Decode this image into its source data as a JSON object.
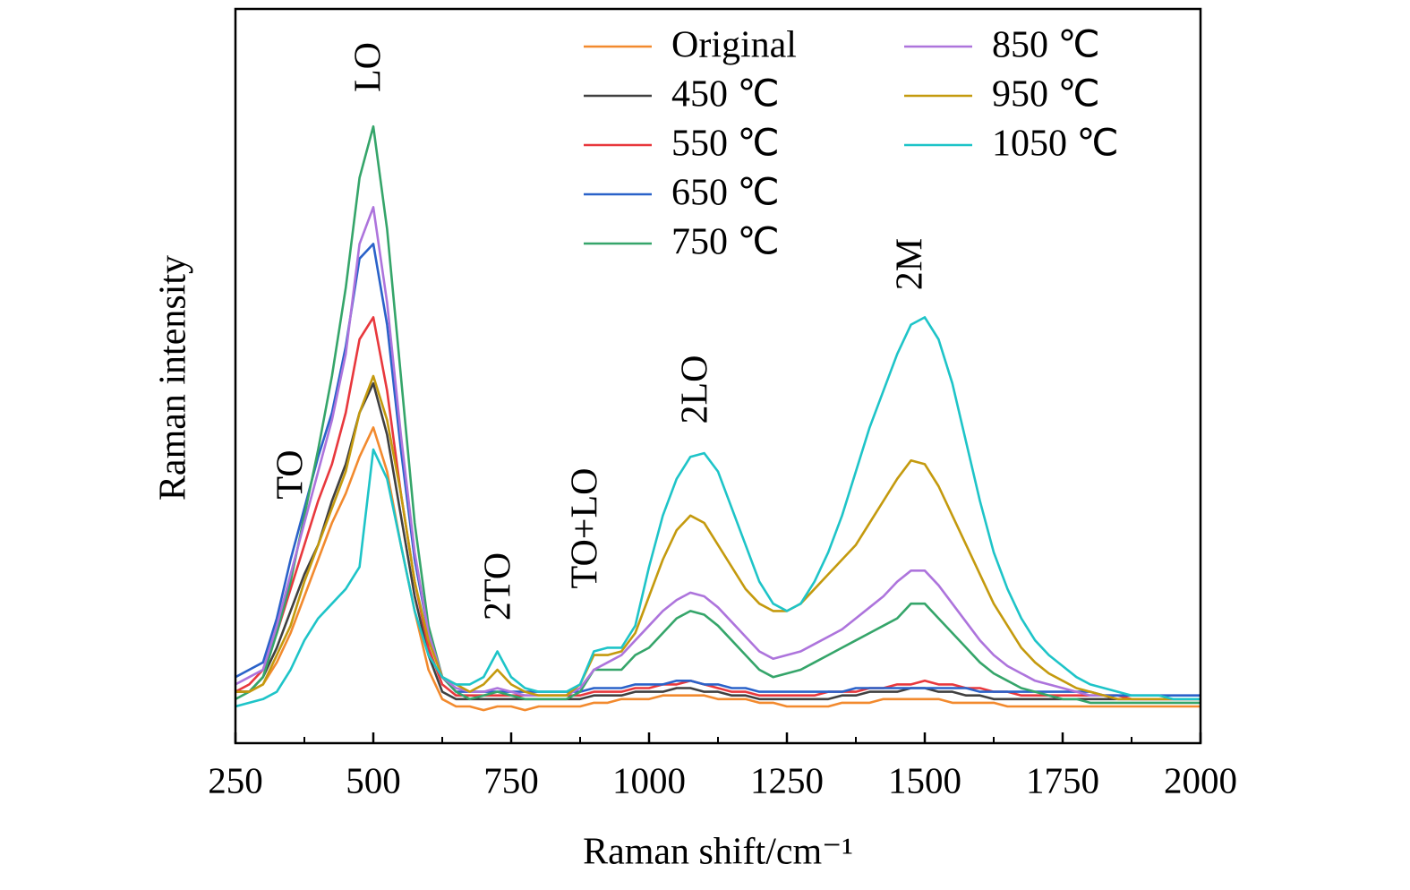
{
  "chart_data": {
    "type": "line",
    "x_label": "Raman shift/cm⁻¹",
    "y_label": "Raman intensity",
    "annotations": [
      "TO",
      "LO",
      "2TO",
      "TO+LO",
      "2LO",
      "2M"
    ],
    "x": [
      250,
      275,
      300,
      325,
      350,
      375,
      400,
      425,
      450,
      475,
      500,
      525,
      550,
      575,
      600,
      625,
      650,
      675,
      700,
      725,
      750,
      775,
      800,
      825,
      850,
      875,
      900,
      925,
      950,
      975,
      1000,
      1025,
      1050,
      1075,
      1100,
      1125,
      1150,
      1175,
      1200,
      1225,
      1250,
      1275,
      1300,
      1325,
      1350,
      1375,
      1400,
      1425,
      1450,
      1475,
      1500,
      1525,
      1550,
      1575,
      1600,
      1625,
      1650,
      1675,
      1700,
      1725,
      1750,
      1775,
      1800,
      1825,
      1850,
      1875,
      1900,
      1925,
      1950,
      1975,
      2000
    ],
    "xlim": [
      250,
      2000
    ],
    "xticks": [
      250,
      500,
      750,
      1000,
      1250,
      1500,
      1750,
      2000
    ],
    "xminorticks": [
      375,
      625,
      875,
      1125,
      1375,
      1625,
      1875
    ],
    "ylim": [
      0,
      100
    ],
    "series": [
      {
        "name": "Original",
        "color": "#f28a2e",
        "values": [
          7,
          7,
          8,
          11,
          15,
          20,
          25,
          30,
          34,
          39,
          43,
          37,
          27,
          18,
          10,
          6,
          5,
          5,
          4.5,
          5,
          5,
          4.5,
          5,
          5,
          5,
          5,
          5.5,
          5.5,
          6,
          6,
          6,
          6.5,
          6.5,
          6.5,
          6.5,
          6,
          6,
          6,
          5.5,
          5.5,
          5,
          5,
          5,
          5,
          5.5,
          5.5,
          5.5,
          6,
          6,
          6,
          6,
          6,
          5.5,
          5.5,
          5.5,
          5.5,
          5,
          5,
          5,
          5,
          5,
          5,
          5,
          5,
          5,
          5,
          5,
          5,
          5,
          5,
          5
        ]
      },
      {
        "name": "450 ℃",
        "color": "#404040",
        "values": [
          7,
          7,
          9,
          13,
          18,
          23,
          27,
          33,
          38,
          45,
          49,
          42,
          31,
          20,
          12,
          7,
          6,
          6,
          6,
          6,
          6,
          6,
          6,
          6,
          6,
          6,
          6.5,
          6.5,
          6.5,
          7,
          7,
          7,
          7.5,
          7.5,
          7,
          7,
          6.5,
          6.5,
          6,
          6,
          6,
          6,
          6,
          6,
          6.5,
          6.5,
          7,
          7,
          7,
          7.5,
          7.5,
          7,
          7,
          6.5,
          6.5,
          6,
          6,
          6,
          6,
          6,
          6,
          6,
          6,
          6,
          6,
          6,
          6,
          6,
          6,
          6,
          6
        ]
      },
      {
        "name": "550 ℃",
        "color": "#e8383d",
        "values": [
          7,
          8,
          10,
          15,
          21,
          27,
          33,
          38,
          45,
          55,
          58,
          48,
          34,
          22,
          13,
          8,
          6.5,
          6.5,
          6.5,
          6.5,
          6.5,
          6.5,
          6.5,
          6.5,
          6.5,
          6.5,
          7,
          7,
          7,
          7.5,
          7.5,
          8,
          8,
          8.5,
          8,
          7.5,
          7,
          7,
          6.5,
          6.5,
          6.5,
          6.5,
          6.5,
          7,
          7,
          7,
          7.5,
          7.5,
          8,
          8,
          8.5,
          8,
          8,
          7.5,
          7.5,
          7,
          7,
          6.5,
          6.5,
          6.5,
          6.5,
          6.5,
          6.5,
          6.5,
          6.5,
          6,
          6,
          6,
          6,
          6,
          6
        ]
      },
      {
        "name": "650 ℃",
        "color": "#2a62c9",
        "values": [
          9,
          10,
          11,
          17,
          25,
          32,
          39,
          45,
          54,
          66,
          68,
          57,
          40,
          25,
          15,
          9,
          7,
          7,
          7,
          7,
          7,
          7,
          7,
          7,
          7,
          7,
          7.5,
          7.5,
          7.5,
          8,
          8,
          8,
          8.5,
          8.5,
          8,
          8,
          7.5,
          7.5,
          7,
          7,
          7,
          7,
          7,
          7,
          7,
          7.5,
          7.5,
          7.5,
          7.5,
          7.5,
          7.5,
          7.5,
          7.5,
          7.5,
          7,
          7,
          7,
          7,
          7,
          7,
          7,
          7,
          7,
          6.5,
          6.5,
          6.5,
          6.5,
          6.5,
          6.5,
          6.5,
          6.5
        ]
      },
      {
        "name": "750 ℃",
        "color": "#35a56a",
        "values": [
          6,
          7,
          9,
          15,
          22,
          31,
          40,
          50,
          62,
          77,
          84,
          70,
          50,
          30,
          16,
          9,
          7,
          6,
          6.5,
          7,
          6.5,
          6,
          6,
          6,
          6,
          7,
          10,
          10,
          10,
          12,
          13,
          15,
          17,
          18,
          17.5,
          16,
          14,
          12,
          10,
          9,
          9.5,
          10,
          11,
          12,
          13,
          14,
          15,
          16,
          17,
          19,
          19,
          17,
          15,
          13,
          11,
          9.5,
          8.5,
          7.5,
          7,
          6.5,
          6,
          6,
          5.5,
          5.5,
          5.5,
          5.5,
          5.5,
          5.5,
          5.5,
          5.5,
          5.5
        ]
      },
      {
        "name": "850 ℃",
        "color": "#ad74dc",
        "values": [
          8,
          9,
          10,
          16,
          23,
          30,
          37,
          44,
          53,
          68,
          73,
          60,
          42,
          26,
          15,
          9,
          7.5,
          7,
          7,
          7.5,
          7,
          6.5,
          6.5,
          6.5,
          6.5,
          7.5,
          10,
          11,
          12,
          14,
          16,
          18,
          19.5,
          20.5,
          20,
          18.5,
          16.5,
          14.5,
          12.5,
          11.5,
          12,
          12.5,
          13.5,
          14.5,
          15.5,
          17,
          18.5,
          20,
          22,
          23.5,
          23.5,
          21.5,
          19,
          16.5,
          14,
          12,
          10.5,
          9.5,
          8.5,
          8,
          7.5,
          7,
          6.5,
          6.5,
          6,
          6,
          6,
          6,
          6,
          6,
          6
        ]
      },
      {
        "name": "950 ℃",
        "color": "#c49a0e",
        "values": [
          7,
          7,
          8,
          12,
          16,
          22,
          27,
          32,
          37,
          45,
          50,
          44,
          34,
          22,
          14,
          9,
          8,
          7,
          8,
          10,
          8,
          7,
          6.5,
          6.5,
          6.5,
          8,
          12,
          12,
          12.5,
          15,
          20,
          25,
          29,
          31,
          30,
          27,
          24,
          21,
          19,
          18,
          18,
          19,
          21,
          23,
          25,
          27,
          30,
          33,
          36,
          38.5,
          38,
          35,
          31,
          27,
          23,
          19,
          16,
          13,
          11,
          9.5,
          8.5,
          7.5,
          7,
          6.5,
          6,
          6,
          6,
          6,
          6,
          6,
          6
        ]
      },
      {
        "name": "1050 ℃",
        "color": "#1ec4c8",
        "values": [
          5,
          5.5,
          6,
          7,
          10,
          14,
          17,
          19,
          21,
          24,
          40,
          36,
          27,
          18,
          12,
          9,
          8,
          8,
          9,
          12.5,
          9,
          7.5,
          7,
          7,
          7,
          8,
          12.5,
          13,
          13,
          16,
          24,
          31,
          36,
          39,
          39.5,
          37,
          32,
          27,
          22,
          19,
          18,
          19,
          22,
          26,
          31,
          37,
          43,
          48,
          53,
          57,
          58,
          55,
          49,
          41,
          33,
          26,
          21,
          17,
          14,
          12,
          10.5,
          9,
          8,
          7.5,
          7,
          6.5,
          6.5,
          6.5,
          6,
          6,
          6
        ]
      }
    ]
  }
}
